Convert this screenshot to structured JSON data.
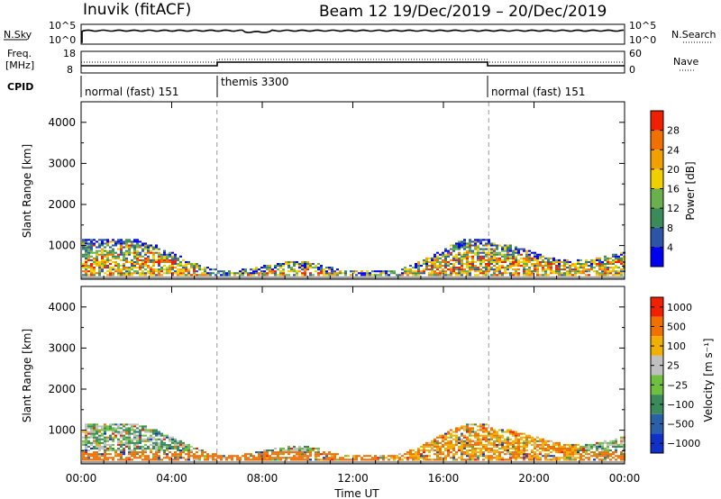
{
  "header": {
    "site": "Inuvik (fitACF)",
    "beam_date": "Beam 12  19/Dec/2019 – 20/Dec/2019"
  },
  "nsky_panel": {
    "left_label": "N.Sky",
    "left_ticks": [
      "10^5",
      "10^0"
    ],
    "right_label": "N.Search",
    "right_ticks": [
      "10^5",
      "10^0"
    ]
  },
  "freq_panel": {
    "left_label_1": "Freq.",
    "left_label_2": "[MHz]",
    "left_ticks": [
      "18",
      "8"
    ],
    "right_label": "Nave",
    "right_ticks": [
      "60",
      "0"
    ]
  },
  "cpid_panel": {
    "label": "CPID",
    "segments": [
      "normal (fast) 151",
      "themis 3300",
      "normal (fast) 151"
    ]
  },
  "time_axis": {
    "label": "Time UT",
    "ticks": [
      "00:00",
      "04:00",
      "08:00",
      "12:00",
      "16:00",
      "20:00",
      "00:00"
    ]
  },
  "colors": {
    "power": [
      "#0000f0",
      "#2c55a8",
      "#3a8a5a",
      "#6ab04c",
      "#f0d000",
      "#f0a000",
      "#f07000",
      "#f02000"
    ],
    "velocity": [
      "#1030c8",
      "#2a60a8",
      "#3a8a5a",
      "#70c040",
      "#c0c0c0",
      "#f0b000",
      "#f07000",
      "#f02000"
    ],
    "dashed_line": "#999999"
  },
  "chart_data": [
    {
      "type": "heatmap",
      "quantity": "power",
      "ylabel": "Slant Range [km]",
      "xlabel": "Time UT",
      "xlim_hours": [
        0,
        24
      ],
      "ylim_km": [
        180,
        4500
      ],
      "yticks": [
        1000,
        2000,
        3000,
        4000
      ],
      "colorbar_label": "Power [dB]",
      "colorbar_ticks": [
        "28",
        "24",
        "20",
        "16",
        "12",
        "8",
        "4"
      ],
      "colorbar_range": [
        0,
        32
      ]
    },
    {
      "type": "heatmap",
      "quantity": "velocity",
      "ylabel": "Slant Range [km]",
      "xlabel": "Time UT",
      "xlim_hours": [
        0,
        24
      ],
      "ylim_km": [
        180,
        4500
      ],
      "yticks": [
        1000,
        2000,
        3000,
        4000
      ],
      "colorbar_label": "Velocity [m s⁻¹]",
      "colorbar_ticks": [
        "1000",
        "500",
        "100",
        "25",
        "−25",
        "−100",
        "−500",
        "−1000"
      ]
    }
  ]
}
